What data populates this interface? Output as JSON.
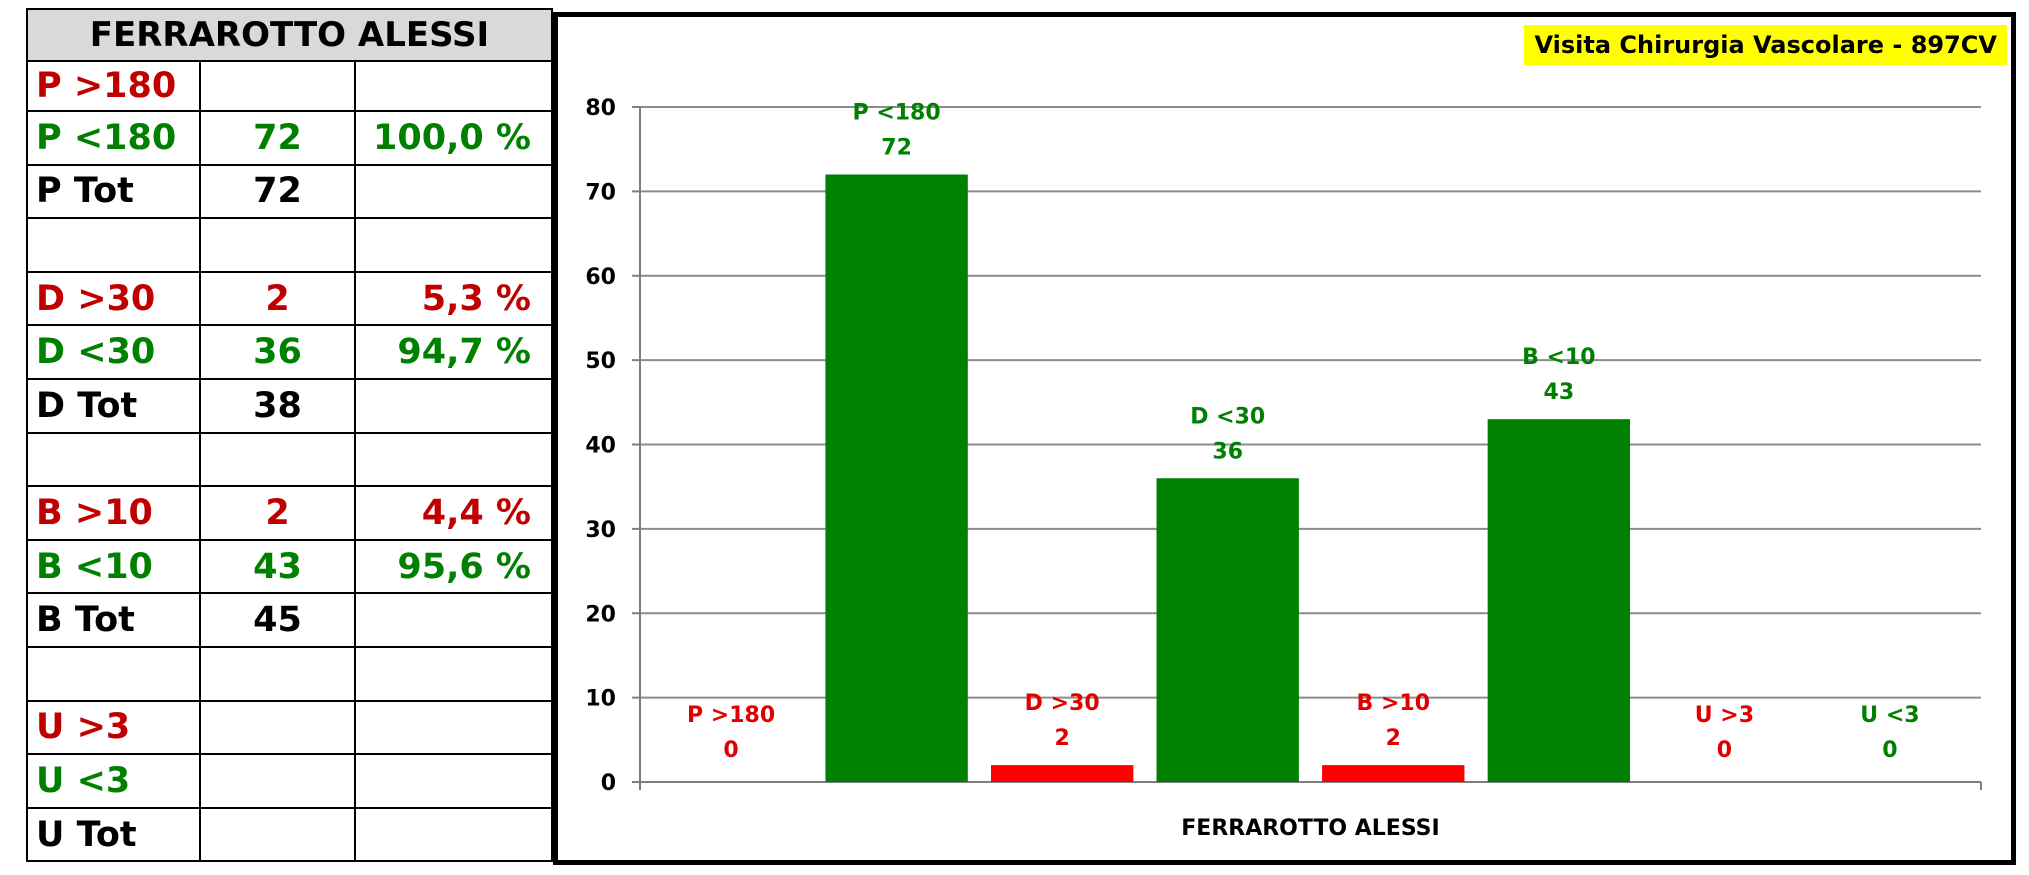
{
  "table": {
    "title": "FERRAROTTO ALESSI",
    "rows": [
      {
        "label": "P  >180",
        "value": "",
        "pct": "",
        "color": "red"
      },
      {
        "label": "P  <180",
        "value": "72",
        "pct": "100,0 %",
        "color": "green"
      },
      {
        "label": "P  Tot",
        "value": "72",
        "pct": "",
        "color": "black"
      },
      {
        "label": "",
        "value": "",
        "pct": "",
        "color": "black"
      },
      {
        "label": "D  >30",
        "value": "2",
        "pct": "5,3 %",
        "color": "red"
      },
      {
        "label": "D  <30",
        "value": "36",
        "pct": "94,7 %",
        "color": "green"
      },
      {
        "label": "D  Tot",
        "value": "38",
        "pct": "",
        "color": "black"
      },
      {
        "label": "",
        "value": "",
        "pct": "",
        "color": "black"
      },
      {
        "label": "B  >10",
        "value": "2",
        "pct": "4,4 %",
        "color": "red"
      },
      {
        "label": "B  <10",
        "value": "43",
        "pct": "95,6 %",
        "color": "green"
      },
      {
        "label": "B  Tot",
        "value": "45",
        "pct": "",
        "color": "black"
      },
      {
        "label": "",
        "value": "",
        "pct": "",
        "color": "black"
      },
      {
        "label": "U  >3",
        "value": "",
        "pct": "",
        "color": "red"
      },
      {
        "label": "U  <3",
        "value": "",
        "pct": "",
        "color": "green"
      },
      {
        "label": "U  Tot",
        "value": "",
        "pct": "",
        "color": "black"
      }
    ]
  },
  "chart_data": {
    "type": "bar",
    "title": "Visita Chirurgia Vascolare - 897CV",
    "xlabel": "FERRAROTTO ALESSI",
    "ylabel": "",
    "ylim": [
      0,
      80
    ],
    "yticks": [
      0,
      10,
      20,
      30,
      40,
      50,
      60,
      70,
      80
    ],
    "grid": true,
    "legend": "none",
    "categories": [
      "P  >180",
      "P  <180",
      "D  >30",
      "D  <30",
      "B  >10",
      "B  <10",
      "U  >3",
      "U  <3"
    ],
    "values": [
      0,
      72,
      2,
      36,
      2,
      43,
      0,
      0
    ],
    "bar_colors": [
      "#ff0000",
      "#008000",
      "#ff0000",
      "#008000",
      "#ff0000",
      "#008000",
      "#ff0000",
      "#008000"
    ],
    "label_colors": [
      "#e00000",
      "#008000",
      "#e00000",
      "#008000",
      "#e00000",
      "#008000",
      "#e00000",
      "#008000"
    ]
  },
  "colors": {
    "red_text": "#c00000",
    "green_text": "#008000",
    "badge_bg": "#ffff00",
    "header_bg": "#d9d9d9"
  }
}
